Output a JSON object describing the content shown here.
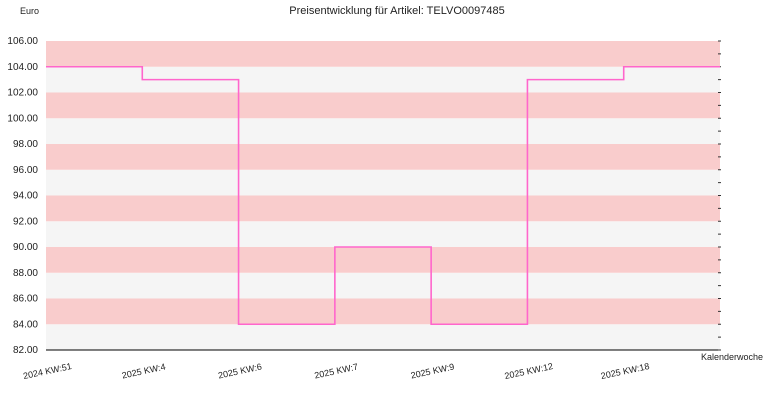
{
  "chart_data": {
    "type": "line",
    "interpolation": "step",
    "title": "Preisentwicklung für Artikel: TELVO0097485",
    "ylabel": "Euro",
    "xlabel": "Kalenderwoche",
    "ylim": [
      82,
      106
    ],
    "yticks": [
      "82.00",
      "84.00",
      "86.00",
      "88.00",
      "90.00",
      "92.00",
      "94.00",
      "96.00",
      "98.00",
      "100.00",
      "102.00",
      "104.00",
      "106.00"
    ],
    "categories": [
      "2024 KW:51",
      "2025 KW:4",
      "2025 KW:6",
      "2025 KW:7",
      "2025 KW:9",
      "2025 KW:12",
      "2025 KW:18",
      ""
    ],
    "series": [
      {
        "values": [
          104,
          103,
          84,
          90,
          84,
          103,
          104,
          104
        ]
      }
    ],
    "grid": true,
    "colors": {
      "line": "#ff66cc",
      "band": "#f9cccc",
      "band_alt": "#f5f5f5",
      "axis": "#000000",
      "text": "#222222"
    }
  }
}
